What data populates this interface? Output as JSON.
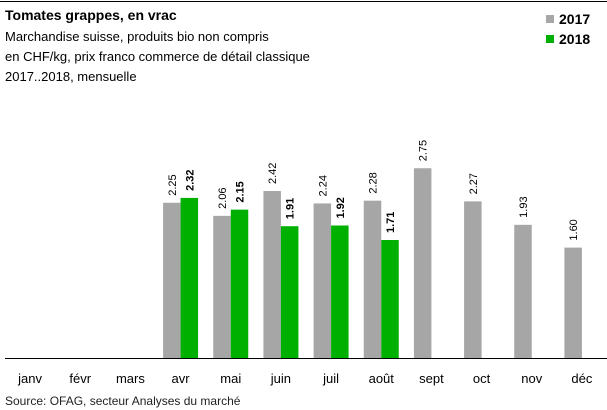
{
  "chart_data": {
    "type": "bar",
    "title": "Tomates grappes, en vrac",
    "subtitle": [
      "Marchandise suisse, produits bio non compris",
      "en CHF/kg,  prix franco commerce de détail classique",
      "2017..2018, mensuelle"
    ],
    "source": "Source: OFAG, secteur Analyses du marché",
    "categories": [
      "janv",
      "févr",
      "mars",
      "avr",
      "mai",
      "juin",
      "juil",
      "août",
      "sept",
      "oct",
      "nov",
      "déc"
    ],
    "series": [
      {
        "name": "2017",
        "color": "#a6a6a6",
        "values": [
          null,
          null,
          null,
          2.25,
          2.06,
          2.42,
          2.24,
          2.28,
          2.75,
          2.27,
          1.93,
          1.6
        ],
        "value_labels": [
          null,
          null,
          null,
          "2.25",
          "2.06",
          "2.42",
          "2.24",
          "2.28",
          "2.75",
          "2.27",
          "1.93",
          "1.60"
        ]
      },
      {
        "name": "2018",
        "color": "#00b000",
        "values": [
          null,
          null,
          null,
          2.32,
          2.15,
          1.91,
          1.92,
          1.71,
          null,
          null,
          null,
          null
        ],
        "value_labels": [
          null,
          null,
          null,
          "2.32",
          "2.15",
          "1.91",
          "1.92",
          "1.71",
          null,
          null,
          null,
          null
        ]
      }
    ],
    "legend": "top-right"
  }
}
